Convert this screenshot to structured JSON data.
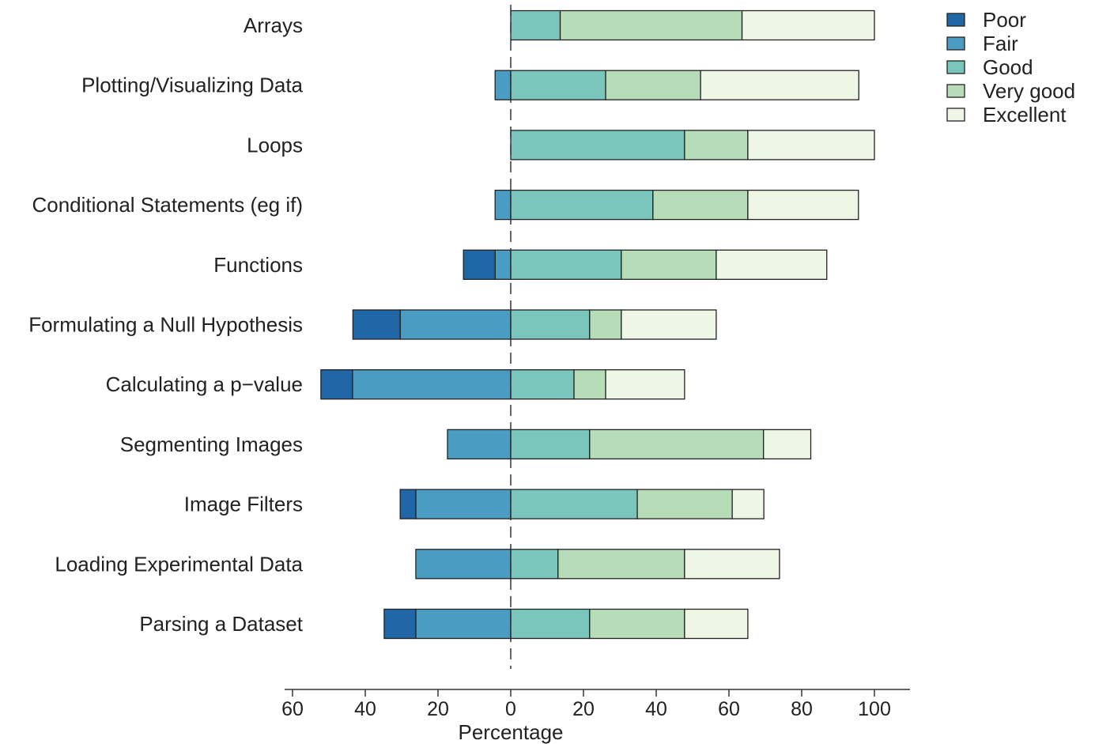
{
  "chart_data": {
    "type": "bar",
    "subtype": "diverging-stacked-horizontal",
    "title": "",
    "xlabel": "Percentage",
    "ylabel": "",
    "xlim": [
      -60,
      100
    ],
    "x_ticks": [
      {
        "value": -60,
        "label": "60"
      },
      {
        "value": -40,
        "label": "40"
      },
      {
        "value": -20,
        "label": "20"
      },
      {
        "value": 0,
        "label": "0"
      },
      {
        "value": 20,
        "label": "20"
      },
      {
        "value": 40,
        "label": "40"
      },
      {
        "value": 60,
        "label": "60"
      },
      {
        "value": 80,
        "label": "80"
      },
      {
        "value": 100,
        "label": "100"
      }
    ],
    "grid": false,
    "zero_line": "dashed",
    "legend_position": "top-right",
    "categories": [
      "Arrays",
      "Plotting/Visualizing Data",
      "Loops",
      "Conditional Statements (eg if)",
      "Functions",
      "Formulating a Null Hypothesis",
      "Calculating a p−value",
      "Segmenting Images",
      "Image Filters",
      "Loading Experimental Data",
      "Parsing a Dataset"
    ],
    "series": [
      {
        "name": "Poor",
        "side": "negative",
        "color": "#2166a6",
        "values": [
          0,
          0,
          0,
          0,
          8.7,
          13,
          8.7,
          0,
          4.3,
          0,
          8.7
        ]
      },
      {
        "name": "Fair",
        "side": "negative",
        "color": "#4a9cc3",
        "values": [
          0,
          4.3,
          0,
          4.3,
          4.3,
          30.4,
          43.5,
          17.4,
          26.1,
          26.1,
          26.1
        ]
      },
      {
        "name": "Good",
        "side": "positive",
        "color": "#7bc6bc",
        "values": [
          13.6,
          26.1,
          47.8,
          39.1,
          30.4,
          21.7,
          17.4,
          21.7,
          34.8,
          13,
          21.7
        ]
      },
      {
        "name": "Very good",
        "side": "positive",
        "color": "#b6ddb8",
        "values": [
          50,
          26.1,
          17.4,
          26.1,
          26.1,
          8.7,
          8.7,
          47.8,
          26.1,
          34.8,
          26.1
        ]
      },
      {
        "name": "Excellent",
        "side": "positive",
        "color": "#eef6e6",
        "values": [
          36.4,
          43.5,
          34.8,
          30.4,
          30.4,
          26.1,
          21.7,
          13,
          8.7,
          26.1,
          17.4
        ]
      }
    ]
  }
}
